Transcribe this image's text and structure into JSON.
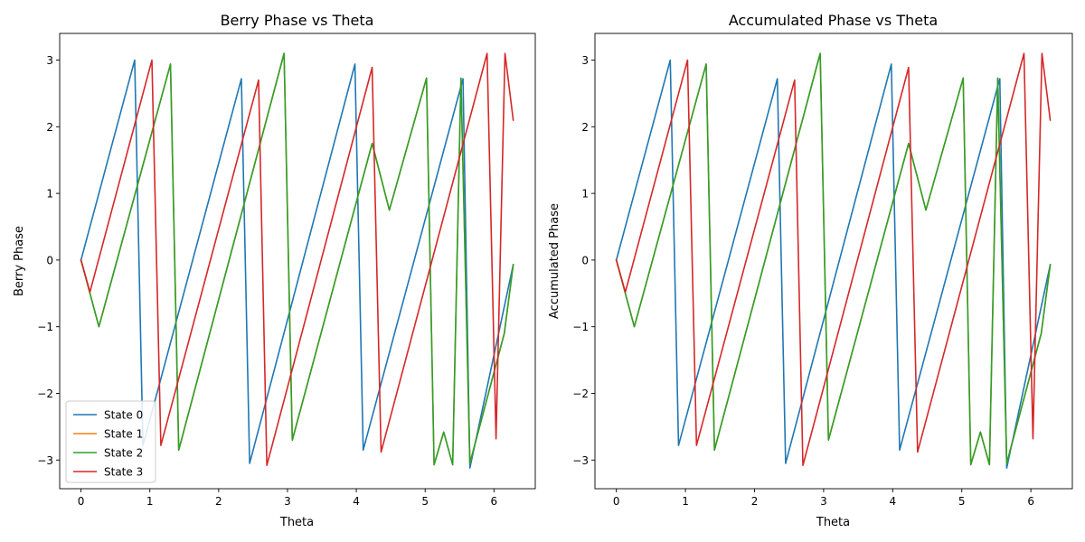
{
  "chart_data": [
    {
      "type": "line",
      "title": "Berry Phase vs Theta",
      "xlabel": "Theta",
      "ylabel": "Berry Phase",
      "xlim": [
        -0.31,
        6.6
      ],
      "ylim": [
        -3.43,
        3.4
      ],
      "xticks": [
        0,
        1,
        2,
        3,
        4,
        5,
        6
      ],
      "yticks": [
        -3,
        -2,
        -1,
        0,
        1,
        2,
        3
      ],
      "xtick_labels": [
        "0",
        "1",
        "2",
        "3",
        "4",
        "5",
        "6"
      ],
      "ytick_labels": [
        "−3",
        "−2",
        "−1",
        "0",
        "1",
        "2",
        "3"
      ],
      "grid": false,
      "legend": "lower-left",
      "series": [
        {
          "name": "State 0",
          "color": "#1f77b4",
          "x": [
            0.0,
            0.78,
            0.9,
            2.33,
            2.45,
            3.98,
            4.1,
            5.55,
            5.65,
            6.28
          ],
          "y": [
            0.0,
            3.0,
            -2.78,
            2.72,
            -3.05,
            2.94,
            -2.85,
            2.72,
            -3.12,
            -0.07
          ]
        },
        {
          "name": "State 1",
          "color": "#ff7f0e",
          "x": [
            0.0,
            0.26,
            1.3,
            1.42,
            2.95,
            3.07,
            4.23,
            4.48,
            5.02,
            5.13,
            5.27,
            5.4,
            5.52,
            5.65,
            6.15,
            6.28
          ],
          "y": [
            0.0,
            -1.0,
            2.94,
            -2.85,
            3.1,
            -2.7,
            1.75,
            0.75,
            2.73,
            -3.07,
            -2.58,
            -3.07,
            2.73,
            -3.05,
            -1.1,
            -0.07
          ]
        },
        {
          "name": "State 2",
          "color": "#2ca02c",
          "x": [
            0.0,
            0.26,
            1.3,
            1.42,
            2.95,
            3.07,
            4.23,
            4.48,
            5.02,
            5.13,
            5.27,
            5.4,
            5.52,
            5.65,
            6.15,
            6.28
          ],
          "y": [
            0.0,
            -1.0,
            2.94,
            -2.85,
            3.1,
            -2.7,
            1.75,
            0.75,
            2.73,
            -3.07,
            -2.58,
            -3.07,
            2.73,
            -3.05,
            -1.1,
            -0.07
          ]
        },
        {
          "name": "State 3",
          "color": "#d62728",
          "x": [
            0.0,
            0.13,
            1.03,
            1.16,
            2.58,
            2.7,
            4.23,
            4.36,
            5.9,
            6.03,
            6.16,
            6.28
          ],
          "y": [
            0.0,
            -0.48,
            3.0,
            -2.78,
            2.7,
            -3.08,
            2.89,
            -2.88,
            3.1,
            -2.68,
            3.1,
            2.1
          ]
        }
      ]
    },
    {
      "type": "line",
      "title": "Accumulated Phase vs Theta",
      "xlabel": "Theta",
      "ylabel": "Accumulated Phase",
      "xlim": [
        -0.31,
        6.6
      ],
      "ylim": [
        -3.43,
        3.4
      ],
      "xticks": [
        0,
        1,
        2,
        3,
        4,
        5,
        6
      ],
      "yticks": [
        -3,
        -2,
        -1,
        0,
        1,
        2,
        3
      ],
      "xtick_labels": [
        "0",
        "1",
        "2",
        "3",
        "4",
        "5",
        "6"
      ],
      "ytick_labels": [
        "−3",
        "−2",
        "−1",
        "0",
        "1",
        "2",
        "3"
      ],
      "grid": false,
      "legend": "none",
      "series": [
        {
          "name": "State 0",
          "color": "#1f77b4",
          "x": [
            0.0,
            0.78,
            0.9,
            2.33,
            2.45,
            3.98,
            4.1,
            5.55,
            5.65,
            6.28
          ],
          "y": [
            0.0,
            3.0,
            -2.78,
            2.72,
            -3.05,
            2.94,
            -2.85,
            2.72,
            -3.12,
            -0.07
          ]
        },
        {
          "name": "State 1",
          "color": "#ff7f0e",
          "x": [
            0.0,
            0.26,
            1.3,
            1.42,
            2.95,
            3.07,
            4.23,
            4.48,
            5.02,
            5.13,
            5.27,
            5.4,
            5.52,
            5.65,
            6.15,
            6.28
          ],
          "y": [
            0.0,
            -1.0,
            2.94,
            -2.85,
            3.1,
            -2.7,
            1.75,
            0.75,
            2.73,
            -3.07,
            -2.58,
            -3.07,
            2.73,
            -3.05,
            -1.1,
            -0.07
          ]
        },
        {
          "name": "State 2",
          "color": "#2ca02c",
          "x": [
            0.0,
            0.26,
            1.3,
            1.42,
            2.95,
            3.07,
            4.23,
            4.48,
            5.02,
            5.13,
            5.27,
            5.4,
            5.52,
            5.65,
            6.15,
            6.28
          ],
          "y": [
            0.0,
            -1.0,
            2.94,
            -2.85,
            3.1,
            -2.7,
            1.75,
            0.75,
            2.73,
            -3.07,
            -2.58,
            -3.07,
            2.73,
            -3.05,
            -1.1,
            -0.07
          ]
        },
        {
          "name": "State 3",
          "color": "#d62728",
          "x": [
            0.0,
            0.13,
            1.03,
            1.16,
            2.58,
            2.7,
            4.23,
            4.36,
            5.9,
            6.03,
            6.16,
            6.28
          ],
          "y": [
            0.0,
            -0.48,
            3.0,
            -2.78,
            2.7,
            -3.08,
            2.89,
            -2.88,
            3.1,
            -2.68,
            3.1,
            2.1
          ]
        }
      ]
    }
  ]
}
